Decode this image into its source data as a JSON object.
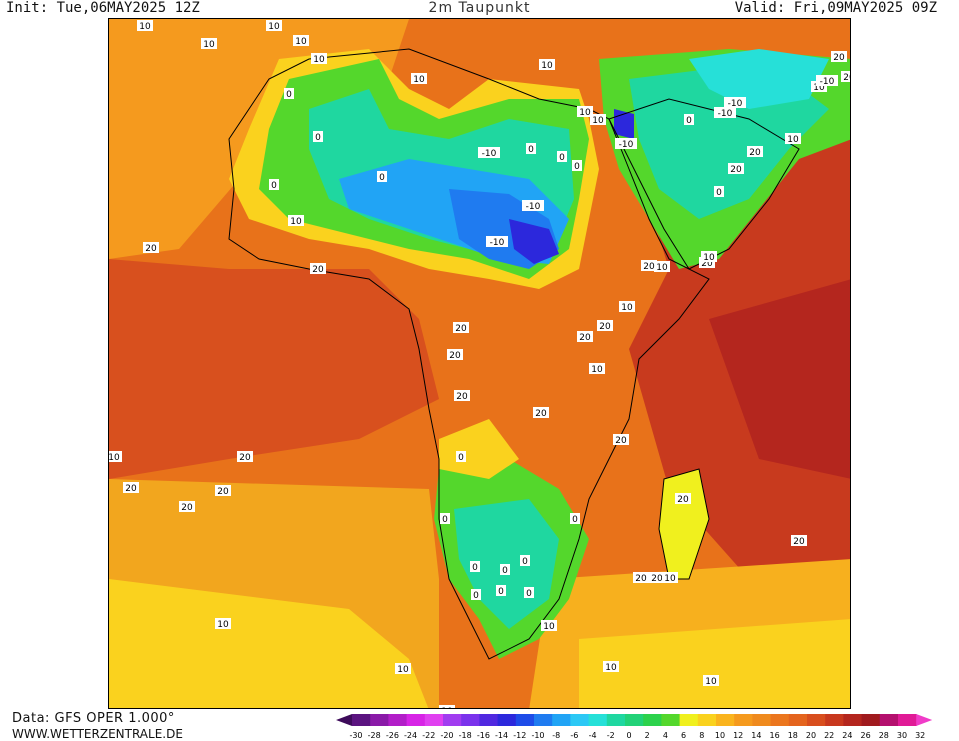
{
  "header": {
    "init": "Init: Tue,06MAY2025 12Z",
    "title": "2m Taupunkt",
    "valid": "Valid: Fri,09MAY2025 09Z"
  },
  "footer": {
    "data_source": "Data: GFS OPER 1.000°",
    "website": "WWW.WETTERZENTRALE.DE"
  },
  "legend": {
    "ticks": [
      "-30",
      "-28",
      "-26",
      "-24",
      "-22",
      "-20",
      "-18",
      "-16",
      "-14",
      "-12",
      "-10",
      "-8",
      "-6",
      "-4",
      "-2",
      "0",
      "2",
      "4",
      "6",
      "8",
      "10",
      "12",
      "14",
      "16",
      "18",
      "20",
      "22",
      "24",
      "26",
      "28",
      "30",
      "32"
    ],
    "colors": [
      "#3d0b5a",
      "#5b1480",
      "#8a1aa8",
      "#b21ec8",
      "#d724e6",
      "#e040f0",
      "#a13cf0",
      "#7a32ec",
      "#5028e0",
      "#2c28dc",
      "#1e4ce8",
      "#1f7bf0",
      "#21a4f5",
      "#2cc8f5",
      "#26e0d8",
      "#1fd7a0",
      "#22d278",
      "#2cd24c",
      "#54d72c",
      "#f0f01e",
      "#fad21e",
      "#fab41e",
      "#f59a1e",
      "#ef8a1e",
      "#eb761e",
      "#e4641e",
      "#d84e1e",
      "#c8381e",
      "#b4261e",
      "#a01a1e",
      "#b4106e",
      "#e01a96",
      "#f03cc8"
    ]
  },
  "map": {
    "contour_labels": [
      {
        "text": "10"
      },
      {
        "text": "10"
      },
      {
        "text": "10"
      },
      {
        "text": "10"
      },
      {
        "text": "10"
      },
      {
        "text": "10"
      },
      {
        "text": "0"
      },
      {
        "text": "0"
      },
      {
        "text": "0"
      },
      {
        "text": "0"
      },
      {
        "text": "10"
      },
      {
        "text": "20"
      },
      {
        "text": "20"
      },
      {
        "text": "-10"
      },
      {
        "text": "-10"
      },
      {
        "text": "-10"
      },
      {
        "text": "0"
      },
      {
        "text": "0"
      },
      {
        "text": "10"
      },
      {
        "text": "0"
      },
      {
        "text": "10"
      },
      {
        "text": "10"
      },
      {
        "text": "-10"
      },
      {
        "text": "-10"
      },
      {
        "text": "-10"
      },
      {
        "text": "0"
      },
      {
        "text": "20"
      },
      {
        "text": "20"
      },
      {
        "text": "10"
      },
      {
        "text": "0"
      },
      {
        "text": "10"
      },
      {
        "text": "20"
      },
      {
        "text": "20"
      },
      {
        "text": "10"
      },
      {
        "text": "20"
      },
      {
        "text": "20"
      },
      {
        "text": "20"
      },
      {
        "text": "20"
      },
      {
        "text": "20"
      },
      {
        "text": "20"
      },
      {
        "text": "20"
      },
      {
        "text": "10"
      },
      {
        "text": "20"
      },
      {
        "text": "0"
      },
      {
        "text": "0"
      },
      {
        "text": "0"
      },
      {
        "text": "0"
      },
      {
        "text": "0"
      },
      {
        "text": "10"
      },
      {
        "text": "20"
      },
      {
        "text": "20"
      },
      {
        "text": "20"
      },
      {
        "text": "20"
      },
      {
        "text": "20"
      },
      {
        "text": "20"
      },
      {
        "text": "20"
      },
      {
        "text": "10"
      },
      {
        "text": "10"
      },
      {
        "text": "10"
      },
      {
        "text": "10"
      },
      {
        "text": "10"
      },
      {
        "text": "10"
      },
      {
        "text": "0"
      },
      {
        "text": "0"
      },
      {
        "text": "0"
      },
      {
        "text": "10"
      },
      {
        "text": "-10"
      },
      {
        "text": "20"
      },
      {
        "text": "20"
      },
      {
        "text": "10"
      },
      {
        "text": "0"
      },
      {
        "text": "10"
      }
    ]
  }
}
